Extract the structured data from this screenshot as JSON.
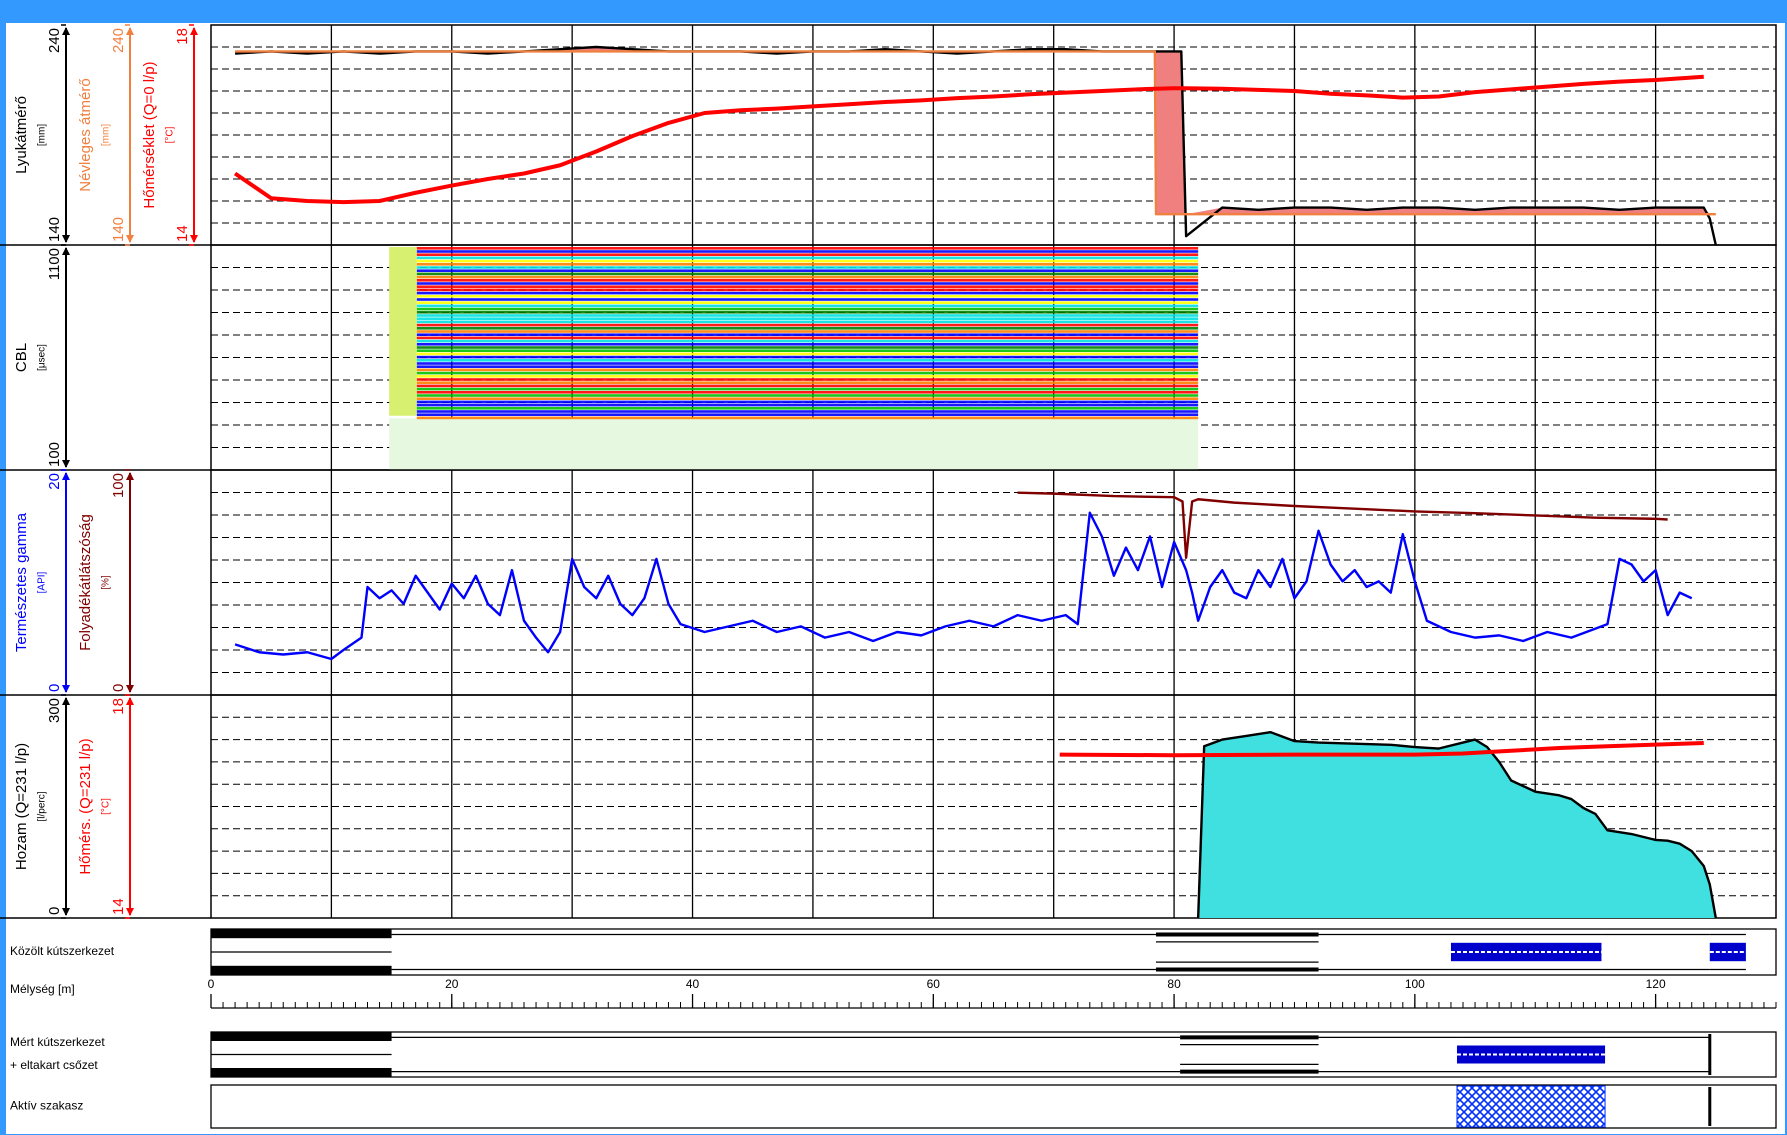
{
  "chart_data": [
    {
      "type": "line",
      "axes": [
        {
          "label": "Lyukátmérő",
          "unit": "[mm]",
          "color": "#000000",
          "ylim": [
            140,
            240
          ],
          "yticks": [
            140,
            240
          ]
        },
        {
          "label": "Névleges átmérő",
          "unit": "[mm]",
          "color": "#f08040",
          "ylim": [
            140,
            240
          ],
          "yticks": [
            140,
            240
          ]
        },
        {
          "label": "Hőmérséklet (Q=0 l/p)",
          "unit": "[°C]",
          "color": "#ff0000",
          "ylim": [
            14,
            18
          ],
          "yticks": [
            14,
            18
          ]
        }
      ],
      "excess_fill": "#f08080",
      "x": [
        2,
        5,
        8,
        11,
        14,
        17,
        20,
        23,
        26,
        29,
        32,
        35,
        38,
        41,
        44,
        47,
        50,
        53,
        56,
        59,
        62,
        65,
        68,
        71,
        74,
        77,
        78.4,
        78.5,
        80,
        80.6,
        81,
        84,
        87,
        90,
        93,
        96,
        99,
        102,
        105,
        108,
        111,
        114,
        117,
        120,
        122,
        124,
        124.5,
        125
      ],
      "series": [
        {
          "axis": 0,
          "color": "#000000",
          "values": [
            227,
            228,
            227,
            228,
            227,
            228,
            228,
            227,
            228,
            229,
            230,
            229,
            228,
            228,
            228,
            227,
            228,
            228,
            229,
            228,
            227,
            228,
            229,
            229,
            228,
            228,
            228,
            228,
            228,
            228,
            144,
            157,
            156,
            157,
            157,
            156,
            157,
            157,
            156,
            157,
            157,
            157,
            156,
            157,
            157,
            157,
            152,
            140
          ]
        },
        {
          "axis": 1,
          "color": "#f08040",
          "values": [
            228,
            228,
            228,
            228,
            228,
            228,
            228,
            228,
            228,
            228,
            228,
            228,
            228,
            228,
            228,
            228,
            228,
            228,
            228,
            228,
            228,
            228,
            228,
            228,
            228,
            228,
            228,
            154,
            154,
            154,
            154,
            154,
            154,
            154,
            154,
            154,
            154,
            154,
            154,
            154,
            154,
            154,
            154,
            154,
            154,
            154,
            154,
            154
          ]
        },
        {
          "axis": 2,
          "color": "#ff0000",
          "values": [
            15.3,
            14.85,
            14.8,
            14.78,
            14.8,
            14.95,
            15.08,
            15.2,
            15.3,
            15.45,
            15.7,
            15.98,
            16.22,
            16.4,
            16.45,
            16.48,
            16.52,
            16.56,
            16.6,
            16.63,
            16.67,
            16.7,
            16.74,
            16.77,
            16.8,
            16.83,
            16.84,
            16.84,
            16.85,
            16.85,
            16.85,
            16.84,
            16.82,
            16.8,
            16.75,
            16.72,
            16.68,
            16.7,
            16.78,
            16.83,
            16.88,
            16.93,
            16.97,
            17.0,
            17.03,
            17.06,
            null,
            null
          ]
        }
      ]
    },
    {
      "type": "image",
      "axes": [
        {
          "label": "CBL",
          "unit": "[μsec]",
          "color": "#000000",
          "ylim": [
            100,
            1100
          ],
          "yticks": [
            100,
            1100
          ]
        }
      ],
      "xrange": [
        14.8,
        82
      ]
    },
    {
      "type": "line",
      "axes": [
        {
          "label": "Természetes gamma",
          "unit": "[API]",
          "color": "#0000ff",
          "ylim": [
            0,
            20
          ],
          "yticks": [
            0,
            20
          ]
        },
        {
          "label": "Folyadékátlátszóság",
          "unit": "[%]",
          "color": "#800000",
          "ylim": [
            0,
            100
          ],
          "yticks": [
            0,
            100
          ]
        }
      ],
      "series": [
        {
          "axis": 0,
          "color": "#0000ff",
          "x": [
            2,
            4,
            6,
            8,
            10,
            11,
            12.5,
            13,
            14,
            15,
            16,
            17,
            18,
            19,
            20,
            21,
            22,
            23,
            24,
            25,
            26,
            27,
            28,
            29,
            30,
            31,
            32,
            33,
            34,
            35,
            36,
            37,
            38,
            39,
            41,
            43,
            45,
            47,
            49,
            51,
            53,
            55,
            57,
            59,
            61,
            63,
            65,
            67,
            69,
            71,
            72,
            73,
            74,
            75,
            76,
            77,
            78,
            79,
            80,
            81,
            81.5,
            82,
            83,
            84,
            85,
            86,
            87,
            88,
            89,
            90,
            91,
            92,
            93,
            94,
            95,
            96,
            97,
            98,
            99,
            100,
            101,
            102,
            103,
            105,
            107,
            109,
            111,
            113,
            115,
            116,
            117,
            118,
            119,
            120,
            121,
            122,
            123
          ],
          "values": [
            4.5,
            3.8,
            3.6,
            3.8,
            3.2,
            4.0,
            5.1,
            9.6,
            8.6,
            9.3,
            8.1,
            10.6,
            9.1,
            7.6,
            9.9,
            8.6,
            10.6,
            8.1,
            7.1,
            11.1,
            6.6,
            5.1,
            3.8,
            5.6,
            12.1,
            9.6,
            8.6,
            10.6,
            8.1,
            7.1,
            8.6,
            12.1,
            8.1,
            6.3,
            5.6,
            6.1,
            6.6,
            5.6,
            6.1,
            5.1,
            5.6,
            4.8,
            5.6,
            5.3,
            6.1,
            6.6,
            6.1,
            7.1,
            6.6,
            7.1,
            6.3,
            16.2,
            14.1,
            10.6,
            13.1,
            11.1,
            14.1,
            9.6,
            13.6,
            11.1,
            9.1,
            6.6,
            9.6,
            11.1,
            9.1,
            8.6,
            11.1,
            9.6,
            12.1,
            8.6,
            10.1,
            14.6,
            11.6,
            10.1,
            11.1,
            9.6,
            10.1,
            9.1,
            14.3,
            10.1,
            6.6,
            6.1,
            5.6,
            5.1,
            5.3,
            4.8,
            5.6,
            5.1,
            5.9,
            6.3,
            12.1,
            11.6,
            10.1,
            11.1,
            7.1,
            9.1,
            8.6
          ]
        },
        {
          "axis": 1,
          "color": "#800000",
          "x": [
            67,
            70,
            75,
            80,
            80.7,
            81,
            81.5,
            82,
            85,
            90,
            95,
            100,
            105,
            110,
            115,
            120,
            121
          ],
          "values": [
            89.9,
            89.5,
            88.4,
            87.9,
            86,
            61,
            86,
            87,
            85.5,
            84,
            82.8,
            81.6,
            80.8,
            79.8,
            78.8,
            78.3,
            78
          ]
        }
      ]
    },
    {
      "type": "line",
      "axes": [
        {
          "label": "Hozam (Q=231 l/p)",
          "unit": "[l/perc]",
          "color": "#000000",
          "ylim": [
            0,
            300
          ],
          "yticks": [
            0,
            300
          ]
        },
        {
          "label": "Hőmérs. (Q=231 l/p)",
          "unit": "[°C]",
          "color": "#ff0000",
          "ylim": [
            14,
            18
          ],
          "yticks": [
            14,
            18
          ]
        }
      ],
      "series": [
        {
          "axis": 0,
          "color": "#000000",
          "fill": "#40e0e0",
          "x": [
            82,
            82.5,
            84,
            86,
            88,
            90,
            92,
            94,
            96,
            98,
            100,
            102,
            104,
            105,
            106,
            107,
            108,
            110,
            112,
            113,
            114,
            115,
            116,
            118,
            120,
            121,
            122,
            123,
            124,
            124.5,
            125
          ],
          "values": [
            0,
            231,
            240,
            245,
            250,
            238,
            236,
            235,
            234,
            233,
            230,
            228,
            236,
            240,
            230,
            210,
            185,
            170,
            165,
            160,
            148,
            140,
            118,
            113,
            105,
            104,
            100,
            90,
            70,
            45,
            0
          ]
        },
        {
          "axis": 1,
          "color": "#ff0000",
          "x": [
            70.5,
            80,
            90,
            100,
            104,
            108,
            112,
            116,
            120,
            124
          ],
          "values": [
            16.93,
            16.92,
            16.93,
            16.93,
            16.95,
            17.0,
            17.05,
            17.08,
            17.11,
            17.14
          ]
        }
      ]
    }
  ],
  "depth_axis": {
    "label": "Mélység [m]",
    "xlim": [
      0,
      130
    ],
    "xticks": [
      0,
      20,
      40,
      60,
      80,
      100,
      120
    ],
    "xgrid": [
      10,
      20,
      30,
      40,
      50,
      60,
      70,
      80,
      90,
      100,
      110,
      120
    ]
  },
  "bands": [
    {
      "labels": [
        "Közölt kútszerkezet"
      ],
      "segments": [
        {
          "from": 0,
          "to": 15,
          "style": "solid"
        },
        {
          "from": 15,
          "to": 78.5,
          "style": "open"
        },
        {
          "from": 78.5,
          "to": 92,
          "style": "double"
        },
        {
          "from": 92,
          "to": 103,
          "style": "open"
        },
        {
          "from": 103,
          "to": 115.5,
          "style": "screen"
        },
        {
          "from": 115.5,
          "to": 124.5,
          "style": "open"
        },
        {
          "from": 124.5,
          "to": 127.5,
          "style": "screen"
        }
      ]
    },
    {
      "labels": [
        "Mért kútszerkezet",
        "+ eltakart csőzet"
      ],
      "segments": [
        {
          "from": 0,
          "to": 15,
          "style": "solid"
        },
        {
          "from": 15,
          "to": 80.5,
          "style": "open"
        },
        {
          "from": 80.5,
          "to": 92,
          "style": "double"
        },
        {
          "from": 92,
          "to": 103.5,
          "style": "open"
        },
        {
          "from": 103.5,
          "to": 115.8,
          "style": "screen"
        },
        {
          "from": 115.8,
          "to": 124.5,
          "style": "open"
        },
        {
          "from": 124.5,
          "to": 124.5,
          "style": "marker"
        }
      ]
    },
    {
      "labels": [
        "Aktív szakasz"
      ],
      "segments": [
        {
          "from": 103.5,
          "to": 115.8,
          "style": "hatch"
        },
        {
          "from": 124.5,
          "to": 124.5,
          "style": "marker"
        }
      ]
    }
  ]
}
